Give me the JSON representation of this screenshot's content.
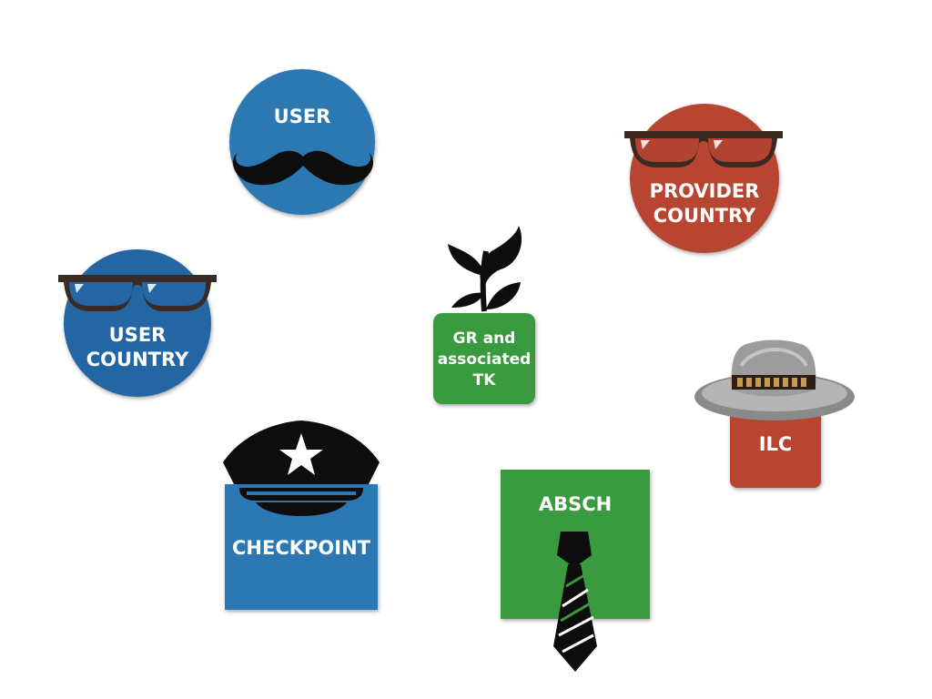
{
  "colors": {
    "blue": "#2b78b3",
    "blue_dark": "#2466a3",
    "red": "#b84532",
    "green": "#3a9a3f"
  },
  "actors": {
    "user": {
      "label": "USER",
      "icon": "mustache-icon"
    },
    "provider_country": {
      "label_line1": "PROVIDER",
      "label_line2": "COUNTRY",
      "icon": "glasses-icon"
    },
    "user_country": {
      "label_line1": "USER",
      "label_line2": "COUNTRY",
      "icon": "glasses-icon"
    },
    "gr_tk": {
      "label_line1": "GR and",
      "label_line2": "associated",
      "label_line3": "TK",
      "icon": "plant-icon"
    },
    "ilc": {
      "label": "ILC",
      "icon": "hat-icon"
    },
    "checkpoint": {
      "label": "CHECKPOINT",
      "icon": "police-cap-icon"
    },
    "absch": {
      "label": "ABSCH",
      "icon": "tie-icon"
    }
  }
}
